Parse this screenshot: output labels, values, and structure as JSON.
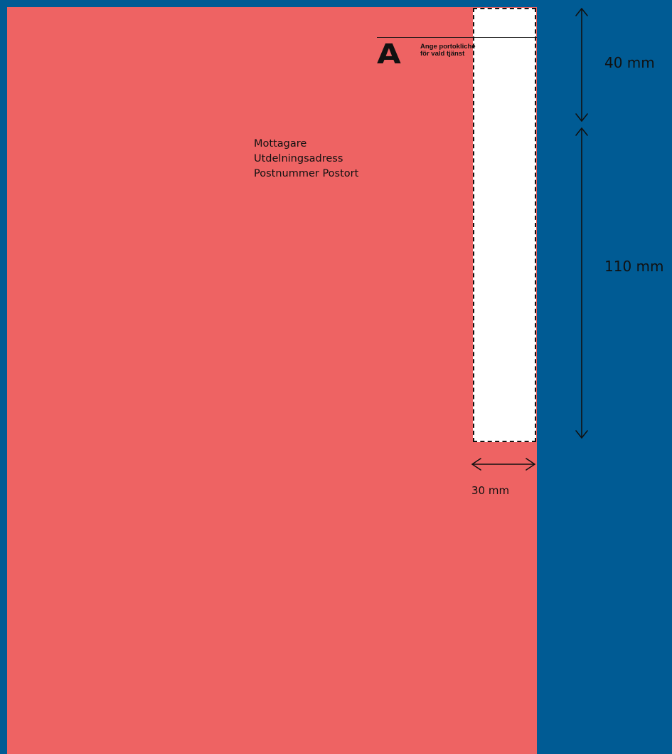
{
  "colors": {
    "background": "#005b94",
    "envelope": "#ee6363",
    "clear_zone": "#ffffff",
    "ink": "#111111"
  },
  "icons": {
    "a_mark": "a-priority-mark",
    "arrow": "double-headed-dimension-arrow"
  },
  "stamp_area": {
    "mark": "A",
    "line1": "Ange portokliché",
    "line2": "för vald tjänst"
  },
  "address": {
    "line1": "Mottagare",
    "line2": "Utdelningsadress",
    "line3": "Postnummer Postort"
  },
  "dimensions": {
    "top_height": "40 mm",
    "lower_height": "110 mm",
    "width": "30 mm"
  }
}
